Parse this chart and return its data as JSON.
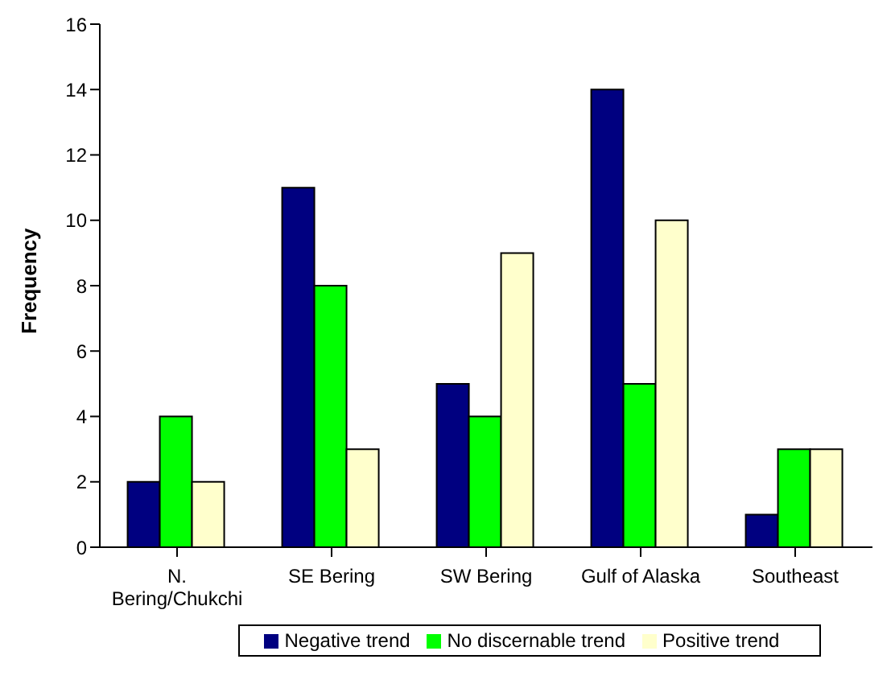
{
  "chart_data": {
    "type": "bar",
    "ylabel": "Frequency",
    "categories": [
      "N. Bering/Chukchi",
      "SE Bering",
      "SW Bering",
      "Gulf of Alaska",
      "Southeast"
    ],
    "series": [
      {
        "name": "Negative trend",
        "color": "#000080",
        "values": [
          2,
          11,
          5,
          14,
          1
        ]
      },
      {
        "name": "No discernable trend",
        "color": "#00ff00",
        "values": [
          4,
          8,
          4,
          5,
          3
        ]
      },
      {
        "name": "Positive trend",
        "color": "#ffffcc",
        "values": [
          2,
          3,
          9,
          10,
          3
        ]
      }
    ],
    "ylim": [
      0,
      16
    ],
    "yticks": [
      0,
      2,
      4,
      6,
      8,
      10,
      12,
      14,
      16
    ],
    "grid": false,
    "legend": "bottom"
  }
}
